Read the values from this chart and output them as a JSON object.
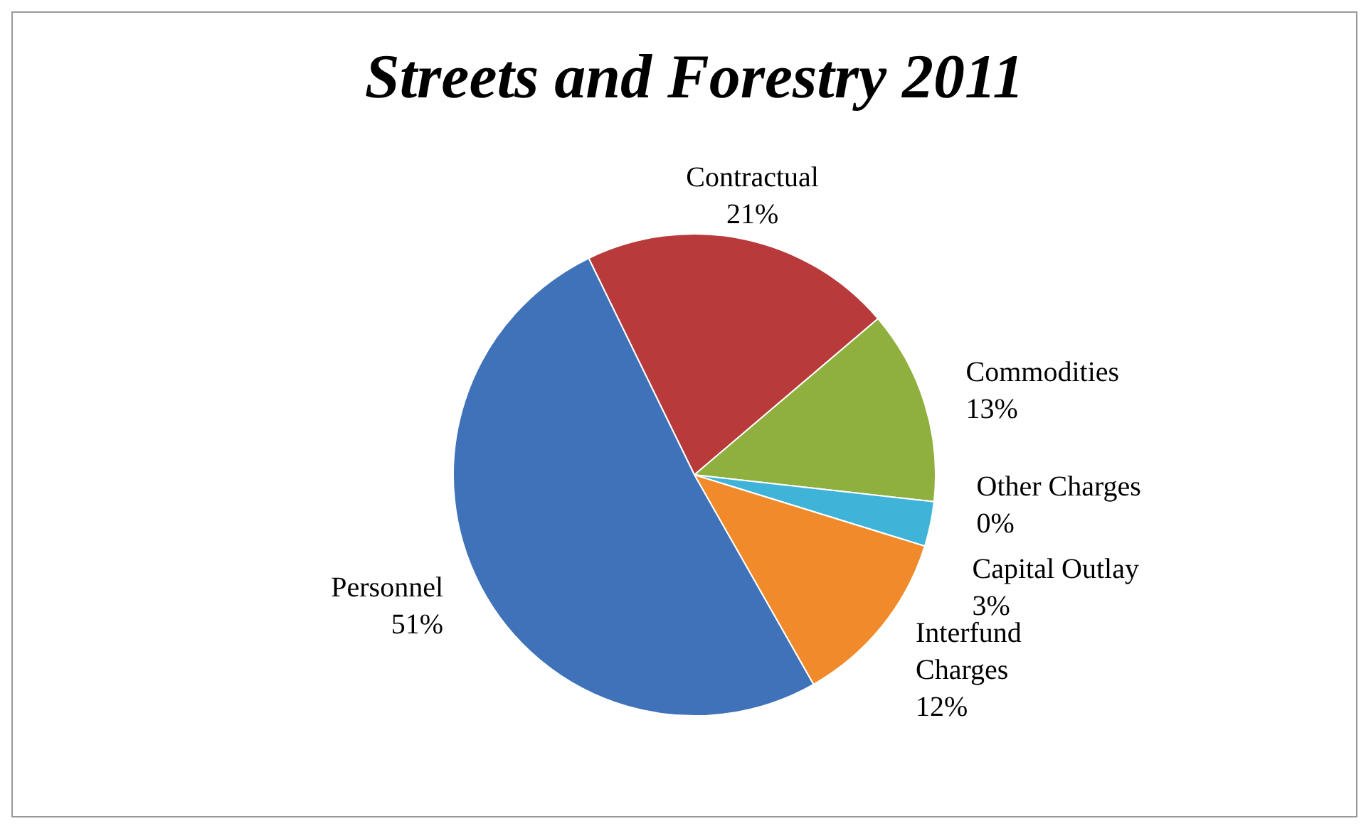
{
  "chart_data": {
    "type": "pie",
    "title": "Streets and Forestry 2011",
    "categories": [
      "Contractual",
      "Commodities",
      "Other Charges",
      "Capital Outlay",
      "Interfund Charges",
      "Personnel"
    ],
    "values": [
      21,
      13,
      0,
      3,
      12,
      51
    ],
    "value_labels": [
      "21%",
      "13%",
      "0%",
      "3%",
      "12%",
      "51%"
    ],
    "colors": [
      "#b83a3a",
      "#8fb03e",
      "#7b5a9a",
      "#3fb4d8",
      "#f08a2a",
      "#3f72b8"
    ],
    "legend": false
  }
}
